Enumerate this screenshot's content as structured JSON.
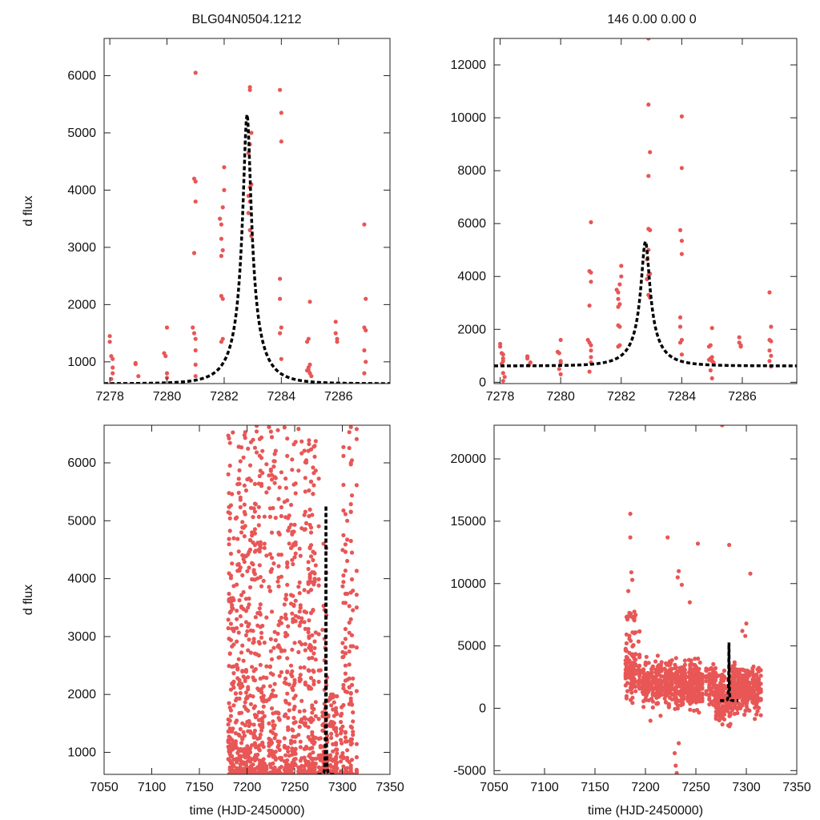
{
  "figure": {
    "title_left": "BLG04N0504.1212",
    "title_right": "146  0.00  0.00  0",
    "colors": {
      "points": "#e85656",
      "model": "#000000",
      "frame": "#222222"
    }
  },
  "chart_data": [
    {
      "id": "top-left",
      "type": "scatter",
      "xlim": [
        7277.8,
        7287.8
      ],
      "ylim": [
        620,
        6650
      ],
      "xticks": [
        7278,
        7280,
        7282,
        7284,
        7286
      ],
      "yticks": [
        1000,
        2000,
        3000,
        4000,
        5000,
        6000
      ],
      "xlabel": "",
      "ylabel": "d flux",
      "model": {
        "t0": 7282.8,
        "base": 620,
        "amp": 4700,
        "u0": 0.14,
        "tE": 1.0
      },
      "points": [
        [
          7278.0,
          1450
        ],
        [
          7278.0,
          1350
        ],
        [
          7278.05,
          1100
        ],
        [
          7278.1,
          1050
        ],
        [
          7278.1,
          900
        ],
        [
          7278.1,
          800
        ],
        [
          7278.05,
          700
        ],
        [
          7278.9,
          980
        ],
        [
          7278.9,
          960
        ],
        [
          7279.0,
          750
        ],
        [
          7279.9,
          1150
        ],
        [
          7279.95,
          1100
        ],
        [
          7280.0,
          1600
        ],
        [
          7280.0,
          800
        ],
        [
          7280.0,
          720
        ],
        [
          7281.0,
          6050
        ],
        [
          7280.95,
          4200
        ],
        [
          7281.0,
          4150
        ],
        [
          7281.0,
          3800
        ],
        [
          7280.95,
          2900
        ],
        [
          7280.9,
          1600
        ],
        [
          7280.95,
          1500
        ],
        [
          7281.0,
          1400
        ],
        [
          7281.0,
          1200
        ],
        [
          7281.0,
          950
        ],
        [
          7281.0,
          750
        ],
        [
          7281.85,
          3500
        ],
        [
          7281.9,
          3400
        ],
        [
          7281.9,
          3150
        ],
        [
          7281.95,
          2950
        ],
        [
          7282.0,
          4400
        ],
        [
          7282.0,
          4000
        ],
        [
          7281.95,
          3700
        ],
        [
          7281.9,
          2850
        ],
        [
          7281.9,
          2150
        ],
        [
          7281.95,
          2100
        ],
        [
          7281.95,
          1400
        ],
        [
          7281.9,
          1350
        ],
        [
          7282.9,
          5800
        ],
        [
          7282.9,
          5750
        ],
        [
          7282.95,
          5000
        ],
        [
          7282.9,
          4800
        ],
        [
          7282.85,
          4650
        ],
        [
          7282.95,
          4100
        ],
        [
          7282.9,
          4050
        ],
        [
          7282.85,
          3900
        ],
        [
          7282.9,
          3800
        ],
        [
          7282.85,
          3600
        ],
        [
          7282.9,
          3300
        ],
        [
          7282.95,
          3200
        ],
        [
          7283.95,
          5750
        ],
        [
          7284.0,
          5350
        ],
        [
          7284.0,
          4850
        ],
        [
          7283.95,
          2450
        ],
        [
          7283.95,
          2100
        ],
        [
          7284.0,
          1600
        ],
        [
          7283.95,
          1500
        ],
        [
          7284.0,
          1050
        ],
        [
          7284.9,
          1350
        ],
        [
          7285.0,
          2050
        ],
        [
          7284.95,
          1400
        ],
        [
          7285.0,
          950
        ],
        [
          7284.95,
          900
        ],
        [
          7284.9,
          850
        ],
        [
          7285.0,
          800
        ],
        [
          7285.05,
          750
        ],
        [
          7284.95,
          850
        ],
        [
          7285.9,
          1700
        ],
        [
          7285.9,
          1500
        ],
        [
          7285.95,
          1400
        ],
        [
          7285.95,
          1350
        ],
        [
          7286.9,
          3400
        ],
        [
          7286.95,
          2100
        ],
        [
          7286.9,
          1600
        ],
        [
          7286.95,
          1550
        ],
        [
          7286.9,
          1200
        ],
        [
          7286.95,
          1000
        ],
        [
          7286.9,
          800
        ]
      ]
    },
    {
      "id": "top-right",
      "type": "scatter",
      "xlim": [
        7277.8,
        7287.8
      ],
      "ylim": [
        -50,
        13000
      ],
      "xticks": [
        7278,
        7280,
        7282,
        7284,
        7286
      ],
      "yticks": [
        0,
        2000,
        4000,
        6000,
        8000,
        10000,
        12000
      ],
      "xlabel": "",
      "ylabel": "",
      "model": {
        "t0": 7282.8,
        "base": 620,
        "amp": 4700,
        "u0": 0.14,
        "tE": 1.0
      },
      "points": [
        [
          7278.0,
          1450
        ],
        [
          7278.0,
          1350
        ],
        [
          7278.05,
          1100
        ],
        [
          7278.1,
          1050
        ],
        [
          7278.1,
          900
        ],
        [
          7278.1,
          800
        ],
        [
          7278.05,
          700
        ],
        [
          7278.1,
          350
        ],
        [
          7278.15,
          200
        ],
        [
          7278.1,
          50
        ],
        [
          7278.9,
          980
        ],
        [
          7278.9,
          960
        ],
        [
          7279.0,
          750
        ],
        [
          7278.95,
          650
        ],
        [
          7278.9,
          900
        ],
        [
          7279.9,
          1150
        ],
        [
          7279.95,
          1100
        ],
        [
          7280.0,
          1600
        ],
        [
          7280.0,
          800
        ],
        [
          7280.0,
          720
        ],
        [
          7279.95,
          500
        ],
        [
          7280.0,
          300
        ],
        [
          7281.0,
          6050
        ],
        [
          7280.95,
          4200
        ],
        [
          7281.0,
          4150
        ],
        [
          7281.0,
          3800
        ],
        [
          7280.95,
          2900
        ],
        [
          7280.9,
          1600
        ],
        [
          7280.95,
          1500
        ],
        [
          7281.0,
          1400
        ],
        [
          7281.0,
          1200
        ],
        [
          7281.0,
          950
        ],
        [
          7281.0,
          750
        ],
        [
          7280.95,
          400
        ],
        [
          7281.85,
          3500
        ],
        [
          7281.9,
          3400
        ],
        [
          7281.9,
          3150
        ],
        [
          7281.95,
          2950
        ],
        [
          7282.0,
          4400
        ],
        [
          7282.0,
          4000
        ],
        [
          7281.95,
          3700
        ],
        [
          7281.9,
          2850
        ],
        [
          7281.9,
          2150
        ],
        [
          7281.95,
          2100
        ],
        [
          7281.95,
          1400
        ],
        [
          7281.9,
          1350
        ],
        [
          7282.9,
          13000
        ],
        [
          7282.9,
          10500
        ],
        [
          7282.95,
          8700
        ],
        [
          7282.9,
          7800
        ],
        [
          7282.9,
          5800
        ],
        [
          7282.95,
          5750
        ],
        [
          7282.9,
          5000
        ],
        [
          7282.85,
          4650
        ],
        [
          7282.95,
          4100
        ],
        [
          7282.9,
          4050
        ],
        [
          7282.85,
          3900
        ],
        [
          7282.9,
          3300
        ],
        [
          7282.95,
          3200
        ],
        [
          7284.0,
          10050
        ],
        [
          7284.0,
          8100
        ],
        [
          7283.95,
          5750
        ],
        [
          7284.0,
          5350
        ],
        [
          7284.0,
          4850
        ],
        [
          7283.95,
          2450
        ],
        [
          7283.95,
          2100
        ],
        [
          7284.0,
          1600
        ],
        [
          7283.95,
          1500
        ],
        [
          7284.0,
          1050
        ],
        [
          7284.9,
          1350
        ],
        [
          7285.0,
          2050
        ],
        [
          7284.95,
          1400
        ],
        [
          7285.0,
          950
        ],
        [
          7284.95,
          900
        ],
        [
          7284.9,
          850
        ],
        [
          7285.0,
          800
        ],
        [
          7285.05,
          750
        ],
        [
          7284.95,
          450
        ],
        [
          7285.0,
          150
        ],
        [
          7285.9,
          1700
        ],
        [
          7285.9,
          1500
        ],
        [
          7285.95,
          1400
        ],
        [
          7285.95,
          1350
        ],
        [
          7286.9,
          3400
        ],
        [
          7286.95,
          2100
        ],
        [
          7286.9,
          1600
        ],
        [
          7286.95,
          1550
        ],
        [
          7286.9,
          1200
        ],
        [
          7286.95,
          1000
        ],
        [
          7286.9,
          800
        ],
        [
          7286.95,
          600
        ]
      ]
    },
    {
      "id": "bottom-left",
      "type": "scatter",
      "xlim": [
        7050,
        7350
      ],
      "ylim": [
        620,
        6650
      ],
      "xticks": [
        7050,
        7100,
        7150,
        7200,
        7250,
        7300,
        7350
      ],
      "yticks": [
        1000,
        2000,
        3000,
        4000,
        5000,
        6000
      ],
      "xlabel": "time (HJD-2450000)",
      "ylabel": "d flux",
      "model": {
        "t0": 7282.8,
        "base": 620,
        "amp": 4700,
        "u0": 0.14,
        "tE": 1.0
      },
      "season": [
        7180,
        7315
      ],
      "ymax_points": 6650,
      "ymin_points": 620,
      "n_points": 1500,
      "seed": 17
    },
    {
      "id": "bottom-right",
      "type": "scatter",
      "xlim": [
        7050,
        7350
      ],
      "ylim": [
        -5300,
        22700
      ],
      "xticks": [
        7050,
        7100,
        7150,
        7200,
        7250,
        7300,
        7350
      ],
      "yticks": [
        -5000,
        0,
        5000,
        10000,
        15000,
        20000
      ],
      "xlabel": "time (HJD-2450000)",
      "ylabel": "",
      "model": {
        "t0": 7282.8,
        "base": 620,
        "amp": 4700,
        "u0": 0.14,
        "tE": 1.0
      },
      "season": [
        7180,
        7315
      ],
      "n_points": 1400,
      "seed": 29,
      "outliers": [
        [
          7185,
          15600
        ],
        [
          7185,
          13700
        ],
        [
          7186,
          10900
        ],
        [
          7187,
          10300
        ],
        [
          7183,
          9400
        ],
        [
          7222,
          13700
        ],
        [
          7233,
          11000
        ],
        [
          7232,
          10500
        ],
        [
          7252,
          13200
        ],
        [
          7283,
          13100
        ],
        [
          7304,
          10800
        ],
        [
          7276,
          22700
        ],
        [
          7231,
          -5200
        ],
        [
          7229,
          -3600
        ],
        [
          7233,
          -2800
        ],
        [
          7230,
          -4600
        ],
        [
          7205,
          -1000
        ],
        [
          7215,
          -600
        ],
        [
          7300,
          6800
        ],
        [
          7299,
          5800
        ],
        [
          7296,
          6200
        ],
        [
          7244,
          8500
        ],
        [
          7236,
          9900
        ]
      ]
    }
  ]
}
